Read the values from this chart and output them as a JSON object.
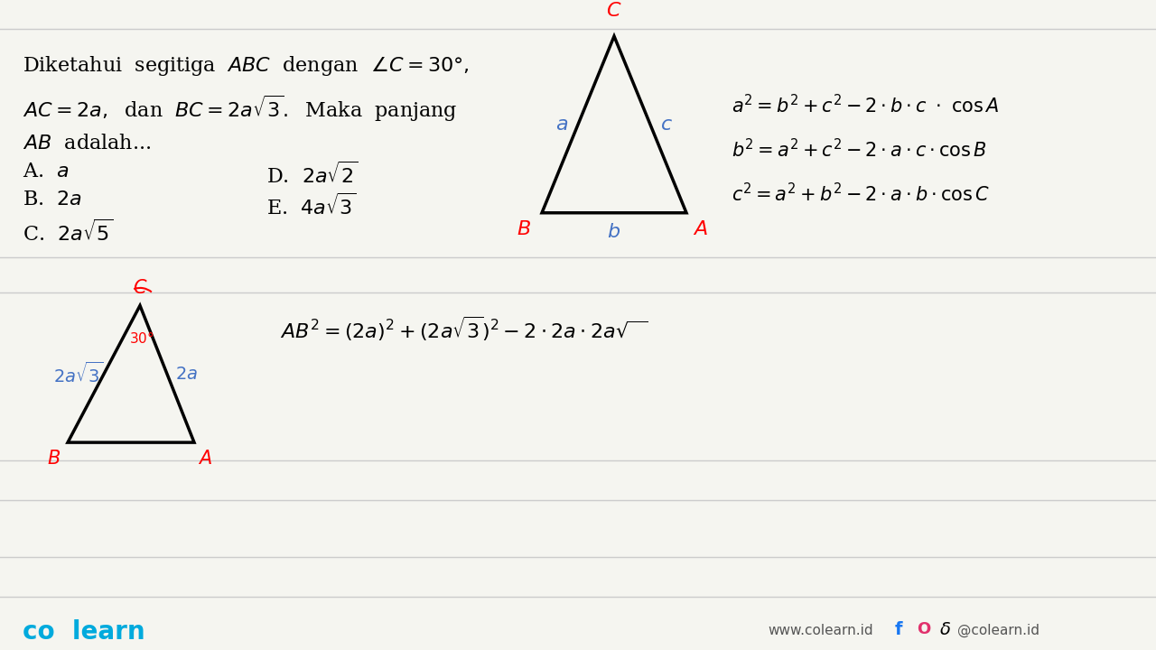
{
  "bg_color": "#f5f5f0",
  "line_color": "#cccccc",
  "title_text": "Diketahui  segitiga  $ABC$  dengan  $\\angle C = 30°$,\n$AC = 2a,$  dan  $BC = 2a\\sqrt{3}$.  Maka  panjang\n$AB$  adalah...",
  "options": [
    "A. $a$",
    "B. $2a$",
    "C. $2a\\sqrt{5}$",
    "D. $2a\\sqrt{2}$",
    "E. $4a\\sqrt{3}$"
  ],
  "cosine_rules": [
    "$a^2 = b^2+c^2 - 2\\cdot b\\cdot c\\ .\\  \\cos A$",
    "$b^2 = a^2+c^2 - 2\\cdot a\\cdot c\\cdot \\cos B$",
    "$c^2 = a^2+b^2 - 2\\cdot a\\cdot b\\cdot \\cos C$"
  ],
  "solution_text": "$AB^2 = (2a)^2 + (2a\\sqrt{3})^2 - 2\\cdot 2a\\cdot 2a\\sqrt{\\ }$",
  "footer_left": "co  learn",
  "footer_right": "www.colearn.id",
  "footer_social": "@colearn.id"
}
